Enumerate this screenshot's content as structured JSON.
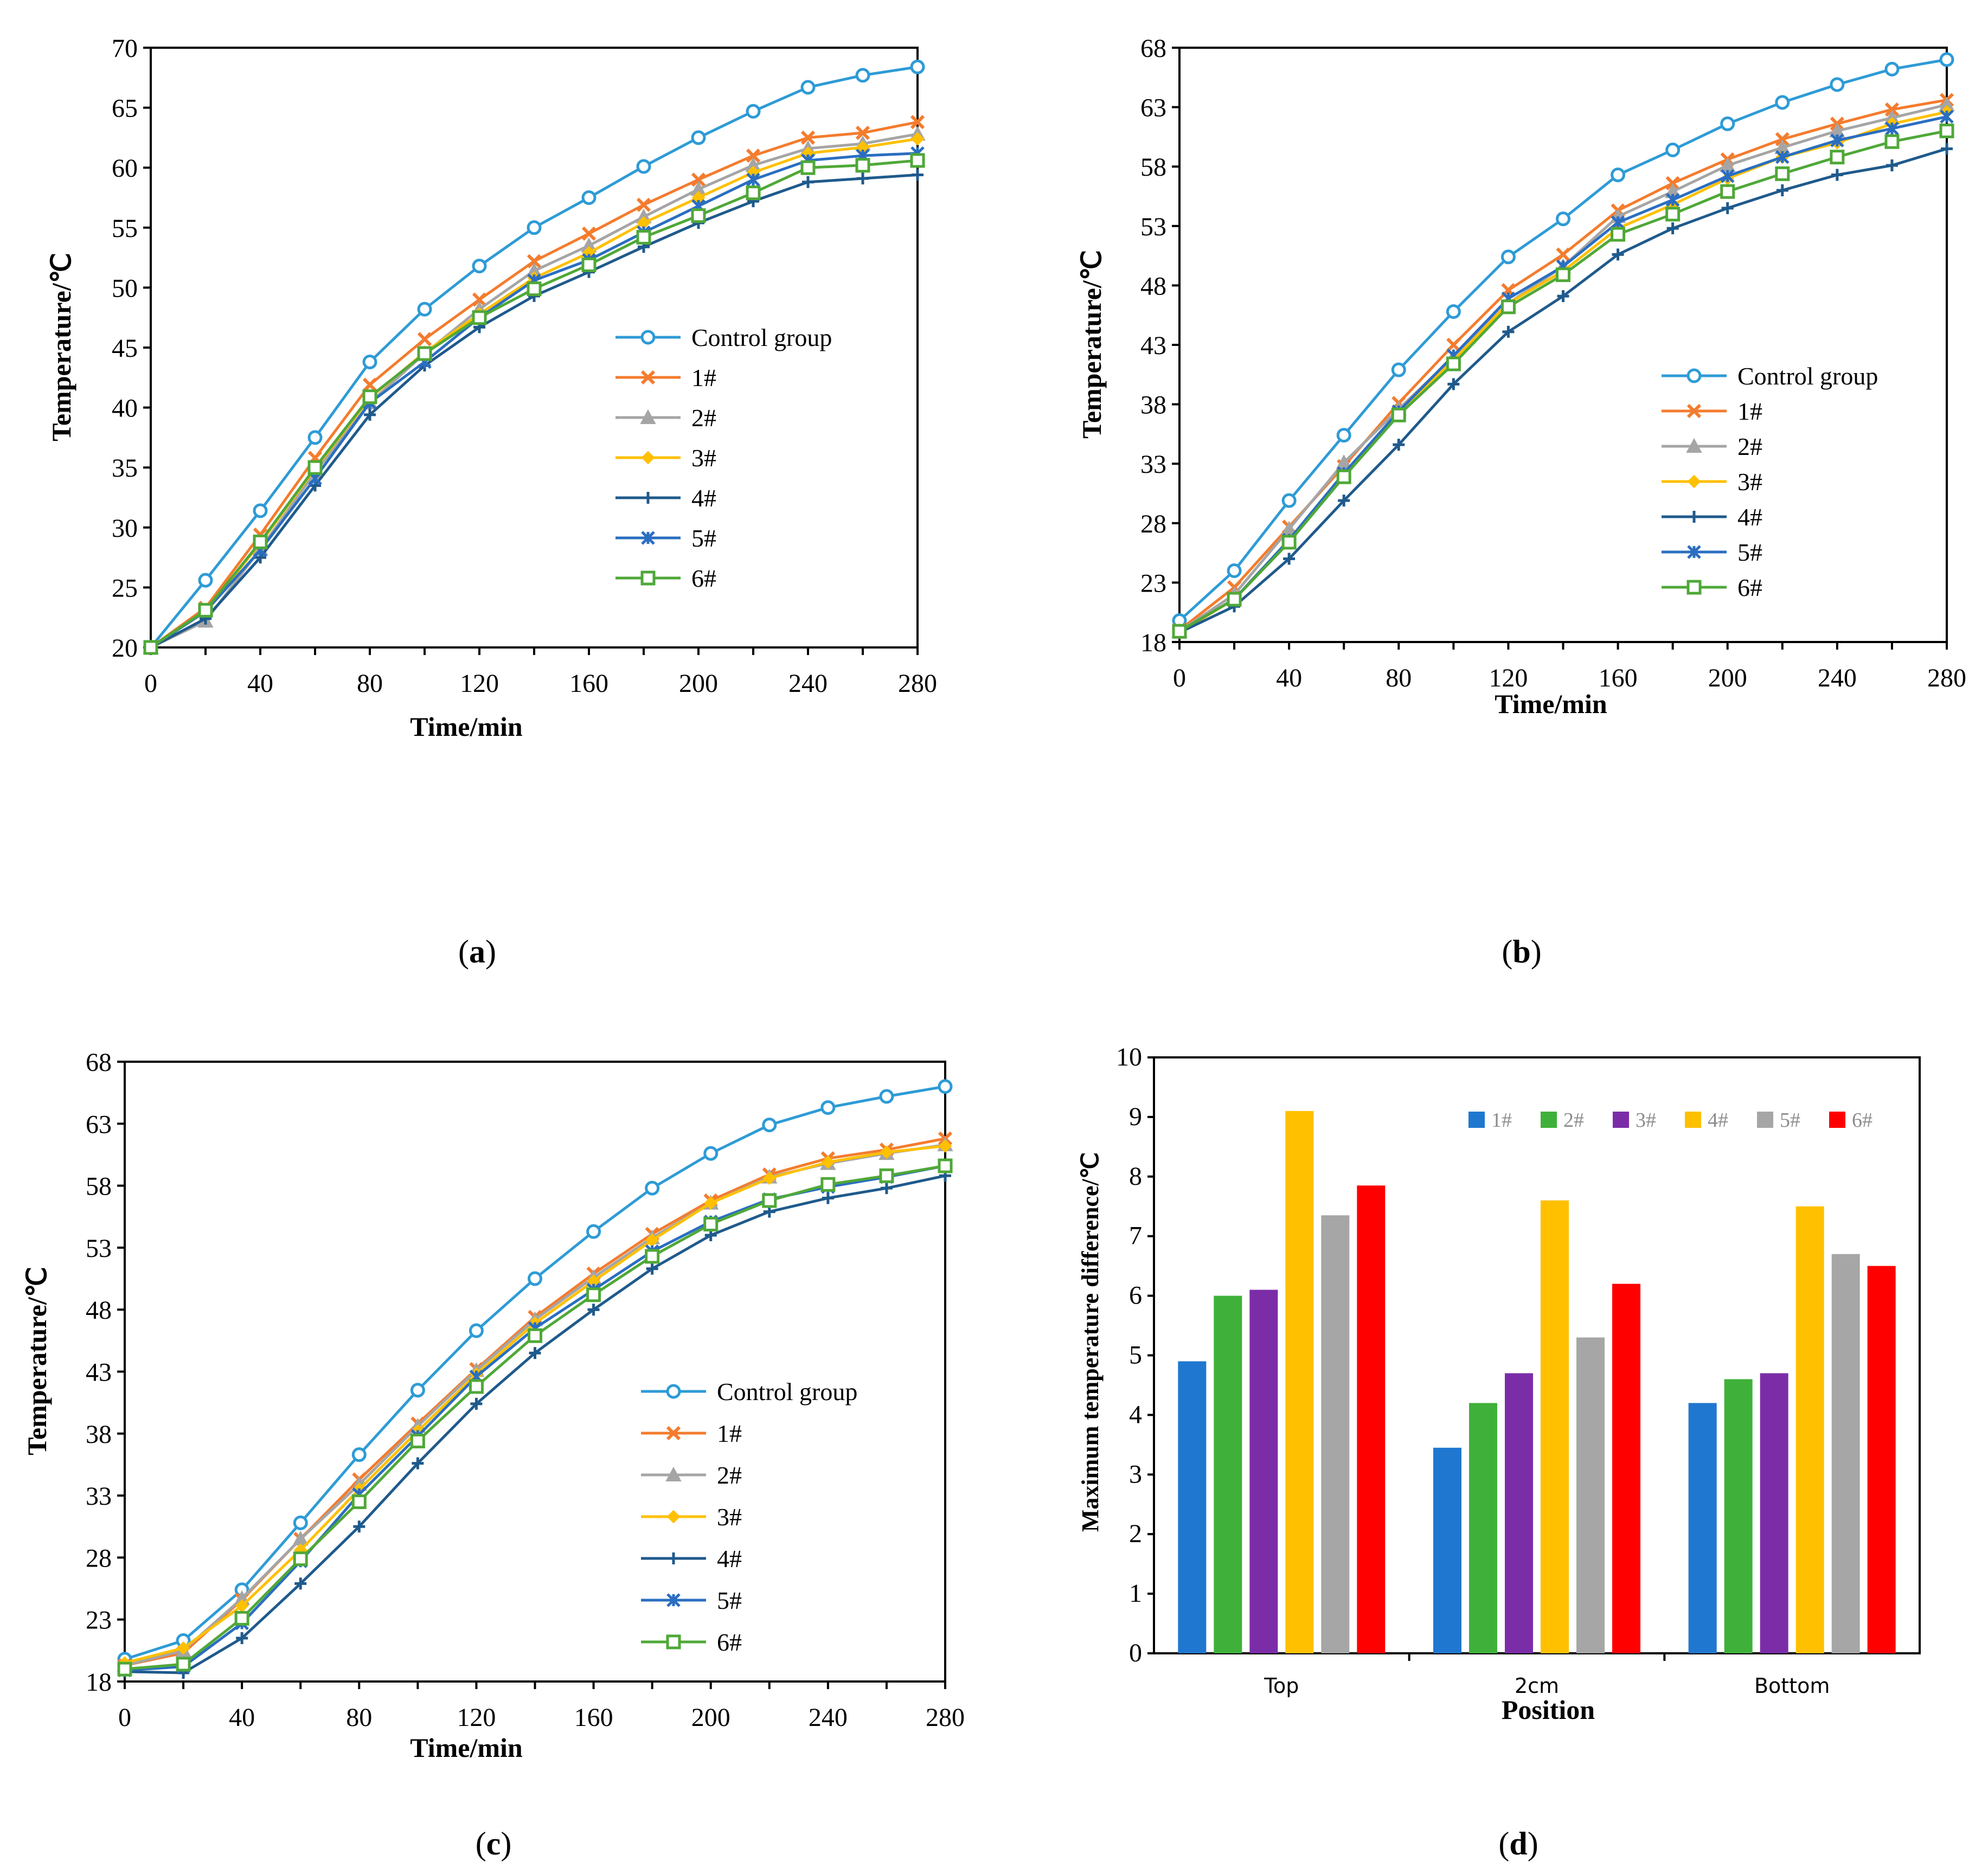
{
  "series_style": {
    "Control group": {
      "color": "#2E9BD6",
      "marker": "circle"
    },
    "1#": {
      "color": "#F47C2E",
      "marker": "x"
    },
    "2#": {
      "color": "#A5A5A5",
      "marker": "triangle"
    },
    "3#": {
      "color": "#FFC000",
      "marker": "diamond"
    },
    "4#": {
      "color": "#1F5A8C",
      "marker": "plus"
    },
    "5#": {
      "color": "#2A6EC1",
      "marker": "star"
    },
    "6#": {
      "color": "#4FA838",
      "marker": "square"
    }
  },
  "bar_colors": [
    "#1F77D0",
    "#3FB13A",
    "#7B2DA8",
    "#FFC000",
    "#A6A6A6",
    "#FF0000"
  ],
  "chart_data": [
    {
      "id": "a",
      "type": "line",
      "panel_label": "a",
      "xlabel": "Time/min",
      "ylabel": "Temperature/℃",
      "xlim": [
        0,
        280
      ],
      "ylim": [
        20,
        70
      ],
      "xticks": [
        0,
        40,
        80,
        120,
        160,
        200,
        240,
        280
      ],
      "yticks": [
        20,
        25,
        30,
        35,
        40,
        45,
        50,
        55,
        60,
        65,
        70
      ],
      "x": [
        0,
        20,
        40,
        60,
        80,
        100,
        120,
        140,
        160,
        180,
        200,
        220,
        240,
        260,
        280
      ],
      "legend_position": "center-right",
      "series": [
        {
          "name": "Control group",
          "values": [
            20,
            25.6,
            31.4,
            37.5,
            43.8,
            48.2,
            51.8,
            55.0,
            57.5,
            60.1,
            62.5,
            64.7,
            66.7,
            67.7,
            68.4
          ]
        },
        {
          "name": "1#",
          "values": [
            20,
            23.3,
            29.4,
            35.8,
            41.9,
            45.7,
            49.0,
            52.2,
            54.5,
            56.9,
            59.0,
            61.0,
            62.5,
            62.9,
            63.8
          ]
        },
        {
          "name": "2#",
          "values": [
            20,
            22.2,
            28.2,
            34.6,
            40.4,
            44.5,
            48.2,
            51.4,
            53.5,
            55.9,
            58.2,
            60.2,
            61.6,
            62.0,
            62.8
          ]
        },
        {
          "name": "3#",
          "values": [
            20,
            23.0,
            28.7,
            34.9,
            40.8,
            44.6,
            47.8,
            50.8,
            52.9,
            55.4,
            57.5,
            59.6,
            61.2,
            61.7,
            62.4
          ]
        },
        {
          "name": "4#",
          "values": [
            20,
            22.4,
            27.5,
            33.5,
            39.4,
            43.5,
            46.7,
            49.3,
            51.3,
            53.4,
            55.4,
            57.2,
            58.8,
            59.1,
            59.4
          ]
        },
        {
          "name": "5#",
          "values": [
            20,
            23.0,
            28.1,
            34.1,
            40.4,
            43.8,
            47.5,
            50.6,
            52.3,
            54.6,
            56.8,
            59.0,
            60.6,
            61.0,
            61.2
          ]
        },
        {
          "name": "6#",
          "values": [
            20,
            23.1,
            28.8,
            35.0,
            40.9,
            44.5,
            47.5,
            49.9,
            51.9,
            54.2,
            56.0,
            57.9,
            60.0,
            60.2,
            60.6
          ]
        }
      ]
    },
    {
      "id": "b",
      "type": "line",
      "panel_label": "b",
      "xlabel": "Time/min",
      "ylabel": "Temperature/℃",
      "xlim": [
        0,
        280
      ],
      "ylim": [
        18,
        68
      ],
      "xticks": [
        0,
        40,
        80,
        120,
        160,
        200,
        240,
        280
      ],
      "yticks": [
        18,
        23,
        28,
        33,
        38,
        43,
        48,
        53,
        58,
        63,
        68
      ],
      "x": [
        0,
        20,
        40,
        60,
        80,
        100,
        120,
        140,
        160,
        180,
        200,
        220,
        240,
        260,
        280
      ],
      "legend_position": "center-right",
      "series": [
        {
          "name": "Control group",
          "values": [
            19.8,
            24.0,
            29.9,
            35.4,
            40.9,
            45.8,
            50.4,
            53.6,
            57.3,
            59.4,
            61.6,
            63.4,
            64.9,
            66.2,
            67.0
          ]
        },
        {
          "name": "1#",
          "values": [
            19.0,
            22.6,
            27.7,
            32.8,
            38.1,
            43.0,
            47.6,
            50.6,
            54.3,
            56.6,
            58.6,
            60.3,
            61.6,
            62.8,
            63.6
          ]
        },
        {
          "name": "2#",
          "values": [
            18.9,
            22.0,
            27.5,
            33.1,
            37.6,
            42.0,
            46.5,
            49.6,
            53.8,
            55.9,
            58.1,
            59.6,
            61.0,
            62.1,
            63.2
          ]
        },
        {
          "name": "3#",
          "values": [
            18.8,
            21.6,
            26.6,
            32.1,
            37.3,
            41.7,
            46.5,
            49.2,
            52.8,
            54.8,
            57.0,
            58.8,
            60.0,
            61.6,
            62.6
          ]
        },
        {
          "name": "4#",
          "values": [
            18.8,
            21.0,
            25.0,
            29.9,
            34.6,
            39.7,
            44.1,
            47.1,
            50.6,
            52.8,
            54.5,
            56.0,
            57.3,
            58.1,
            59.5
          ]
        },
        {
          "name": "5#",
          "values": [
            18.9,
            21.6,
            26.6,
            32.2,
            37.4,
            42.1,
            46.9,
            49.6,
            53.3,
            55.2,
            57.2,
            58.8,
            60.2,
            61.2,
            62.2
          ]
        },
        {
          "name": "6#",
          "values": [
            18.9,
            21.6,
            26.4,
            31.9,
            37.1,
            41.4,
            46.2,
            48.9,
            52.3,
            54.0,
            55.9,
            57.4,
            58.8,
            60.1,
            61.0
          ]
        }
      ]
    },
    {
      "id": "c",
      "type": "line",
      "panel_label": "c",
      "xlabel": "Time/min",
      "ylabel": "Temperature/℃",
      "xlim": [
        0,
        280
      ],
      "ylim": [
        18,
        68
      ],
      "xticks": [
        0,
        40,
        80,
        120,
        160,
        200,
        240,
        280
      ],
      "yticks": [
        18,
        23,
        28,
        33,
        38,
        43,
        48,
        53,
        58,
        63,
        68
      ],
      "x": [
        0,
        20,
        40,
        60,
        80,
        100,
        120,
        140,
        160,
        180,
        200,
        220,
        240,
        260,
        280
      ],
      "legend_position": "center-right",
      "series": [
        {
          "name": "Control group",
          "values": [
            19.8,
            21.3,
            25.4,
            30.8,
            36.3,
            41.5,
            46.3,
            50.5,
            54.3,
            57.8,
            60.6,
            62.9,
            64.3,
            65.2,
            66.0
          ]
        },
        {
          "name": "1#",
          "values": [
            19.3,
            20.3,
            24.6,
            29.5,
            34.3,
            38.8,
            43.2,
            47.4,
            50.9,
            54.1,
            56.8,
            58.9,
            60.2,
            60.9,
            61.8
          ]
        },
        {
          "name": "2#",
          "values": [
            19.3,
            20.5,
            24.7,
            29.5,
            33.9,
            38.6,
            43.1,
            47.2,
            50.6,
            53.8,
            56.6,
            58.7,
            59.8,
            60.6,
            61.3
          ]
        },
        {
          "name": "3#",
          "values": [
            19.5,
            20.7,
            24.1,
            28.6,
            33.5,
            38.2,
            42.8,
            46.9,
            50.3,
            53.6,
            56.6,
            58.6,
            59.9,
            60.7,
            61.2
          ]
        },
        {
          "name": "4#",
          "values": [
            18.8,
            18.7,
            21.5,
            25.9,
            30.5,
            35.6,
            40.4,
            44.5,
            48.0,
            51.3,
            54.0,
            55.9,
            57.0,
            57.8,
            58.8
          ]
        },
        {
          "name": "5#",
          "values": [
            18.9,
            19.2,
            22.7,
            27.7,
            33.1,
            37.8,
            42.6,
            46.5,
            49.6,
            52.7,
            55.1,
            56.9,
            57.9,
            58.7,
            59.6
          ]
        },
        {
          "name": "6#",
          "values": [
            19.0,
            19.4,
            23.1,
            27.9,
            32.5,
            37.4,
            41.8,
            45.9,
            49.2,
            52.3,
            54.9,
            56.8,
            58.1,
            58.8,
            59.6
          ]
        }
      ]
    },
    {
      "id": "d",
      "type": "bar",
      "panel_label": "d",
      "xlabel": "Position",
      "ylabel": "Maximum temperature difference/℃",
      "ylim": [
        0,
        10
      ],
      "yticks": [
        0,
        1,
        2,
        3,
        4,
        5,
        6,
        7,
        8,
        9,
        10
      ],
      "categories": [
        "Top",
        "2cm",
        "Bottom"
      ],
      "legend_position": "top-center",
      "series": [
        {
          "name": "1#",
          "values": [
            4.9,
            3.45,
            4.2
          ]
        },
        {
          "name": "2#",
          "values": [
            6.0,
            4.2,
            4.6
          ]
        },
        {
          "name": "3#",
          "values": [
            6.1,
            4.7,
            4.7
          ]
        },
        {
          "name": "4#",
          "values": [
            9.1,
            7.6,
            7.5
          ]
        },
        {
          "name": "5#",
          "values": [
            7.35,
            5.3,
            6.7
          ]
        },
        {
          "name": "6#",
          "values": [
            7.85,
            6.2,
            6.5
          ]
        }
      ]
    }
  ]
}
